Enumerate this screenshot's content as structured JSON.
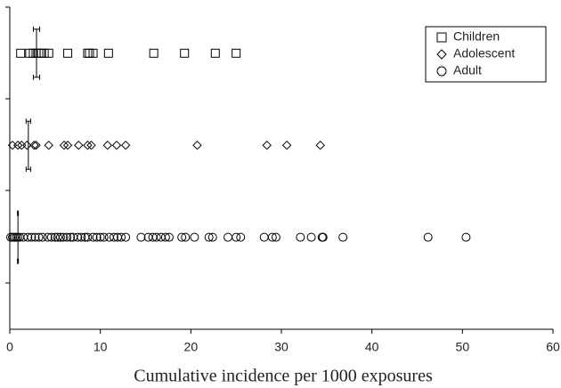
{
  "chart_data": {
    "type": "strip",
    "x_label": "Cumulative incidence per 1000 exposures",
    "xlim": [
      0,
      60
    ],
    "xticks": [
      0,
      10,
      20,
      30,
      40,
      50,
      60
    ],
    "legend": "top-right",
    "series": [
      {
        "name": "Children",
        "marker": "square",
        "color": "#000000",
        "values": [
          1.2,
          2.2,
          2.6,
          2.9,
          3.2,
          3.5,
          3.8,
          4.3,
          6.4,
          8.6,
          8.8,
          9.2,
          10.9,
          15.9,
          19.3,
          22.7,
          25.0
        ],
        "mean": 2.95,
        "ci": [
          2.6,
          3.3
        ]
      },
      {
        "name": "Adolescent",
        "marker": "diamond",
        "color": "#000000",
        "values": [
          0.3,
          0.9,
          1.3,
          1.9,
          2.7,
          2.9,
          4.3,
          6.0,
          6.4,
          7.6,
          8.6,
          9.0,
          10.8,
          11.8,
          12.8,
          20.7,
          28.4,
          30.6,
          34.3
        ],
        "mean": 2.05,
        "ci": [
          1.8,
          2.3
        ]
      },
      {
        "name": "Adult",
        "marker": "circle",
        "color": "#000000",
        "values": [
          0.1,
          0.3,
          0.5,
          0.7,
          0.9,
          1.1,
          1.5,
          2.0,
          2.4,
          2.8,
          3.2,
          3.6,
          4.2,
          4.6,
          5.0,
          5.3,
          5.6,
          5.9,
          6.3,
          6.7,
          7.0,
          7.5,
          7.9,
          8.3,
          8.6,
          9.2,
          9.6,
          10.0,
          10.4,
          11.0,
          11.5,
          11.9,
          12.3,
          12.8,
          14.5,
          15.3,
          15.8,
          16.2,
          16.7,
          17.2,
          17.6,
          19.0,
          19.4,
          20.4,
          22.0,
          22.4,
          24.1,
          25.0,
          25.5,
          28.1,
          29.0,
          29.4,
          32.1,
          33.3,
          34.5,
          34.6,
          36.8,
          46.2,
          50.4
        ],
        "mean": 0.9,
        "ci": [
          0.85,
          0.95
        ]
      }
    ]
  }
}
